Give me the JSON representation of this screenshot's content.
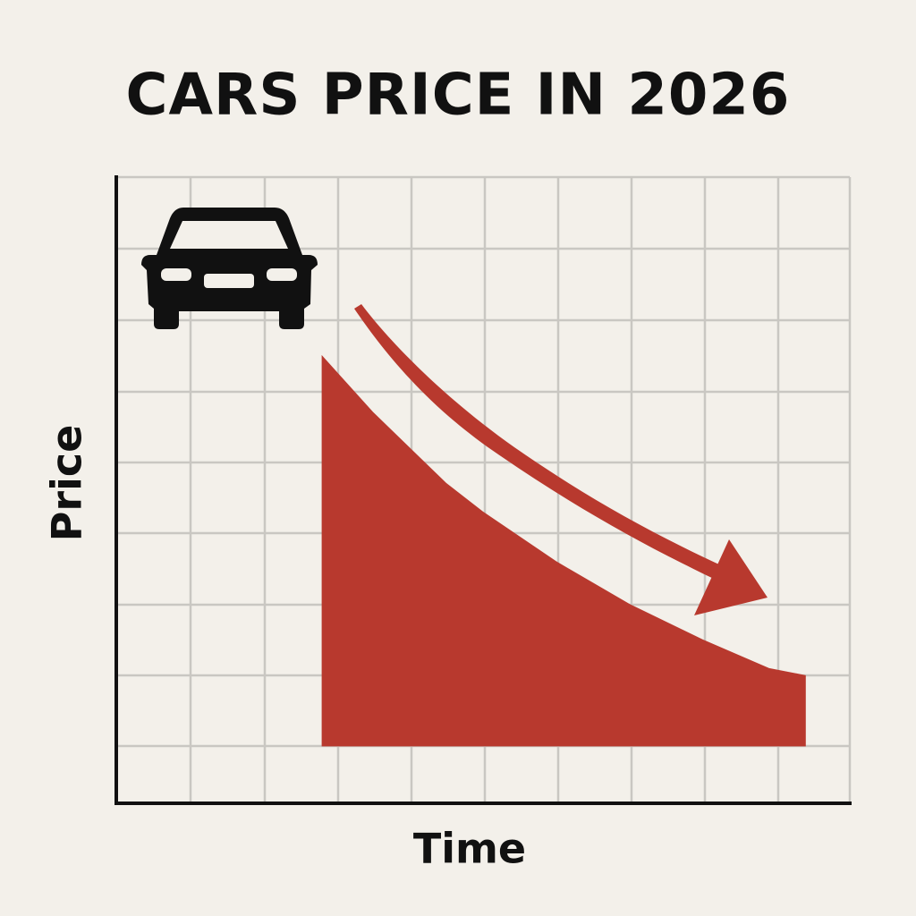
{
  "chart_data": {
    "type": "area",
    "title": "CARS PRICE IN 2026",
    "x_label": "Time",
    "y_label": "Price",
    "color": "#b8392e",
    "x": [
      2.8,
      3.5,
      4.5,
      5,
      6,
      7,
      8,
      8.9,
      9.4
    ],
    "values": [
      5.5,
      4.7,
      3.7,
      3.3,
      2.6,
      2.0,
      1.5,
      1.1,
      1.0
    ],
    "xlim": [
      0,
      10
    ],
    "ylim": [
      -0.8,
      8
    ]
  }
}
